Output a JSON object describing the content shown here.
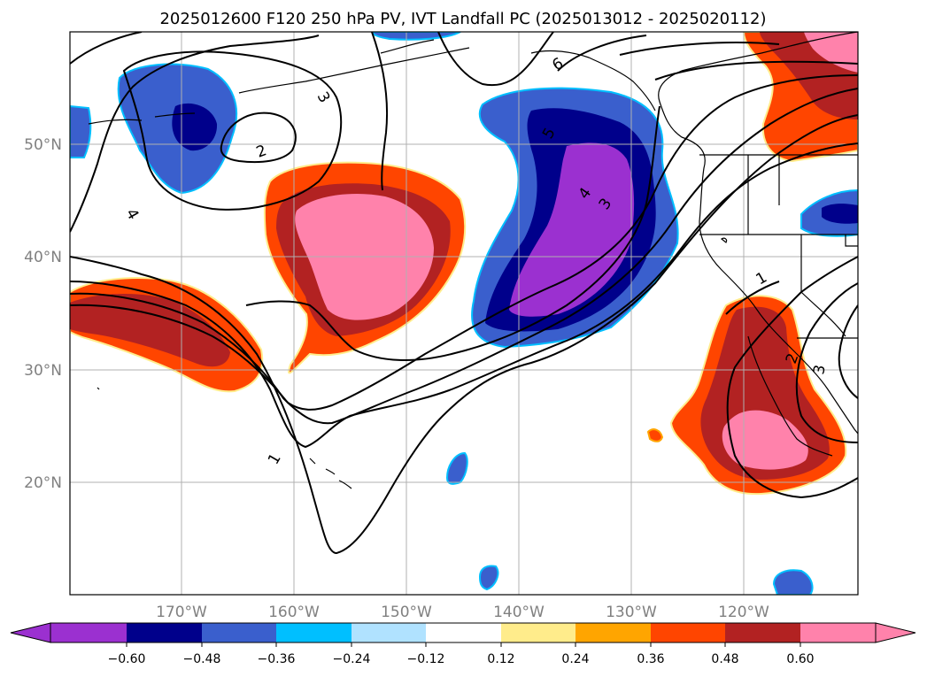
{
  "title": "2025012600 F120 250 hPa PV, IVT Landfall PC (2025013012 - 2025020112)",
  "lat_labels": [
    "50°N",
    "40°N",
    "30°N",
    "20°N"
  ],
  "lon_labels": [
    "170°W",
    "160°W",
    "150°W",
    "140°W",
    "130°W",
    "120°W"
  ],
  "colorbar": {
    "ticks": [
      "−0.60",
      "−0.48",
      "−0.36",
      "−0.24",
      "−0.12",
      "0.12",
      "0.24",
      "0.36",
      "0.48",
      "0.60"
    ],
    "colors": [
      "#9b30d0",
      "#00008b",
      "#3a5fcd",
      "#00bfff",
      "#b0e2ff",
      "#ffffff",
      "#ffec8b",
      "#ffa500",
      "#ff4500",
      "#b22222",
      "#ff82ab",
      "#ff82ab"
    ],
    "extend": "both"
  },
  "contour_labels": [
    "6",
    "3",
    "2",
    "4",
    "5",
    "4",
    "3",
    "1",
    "1",
    "2",
    "3"
  ],
  "colors": {
    "purple": "#9b30d0",
    "navy": "#00008b",
    "royal": "#3a5fcd",
    "deepsky": "#00bfff",
    "lightblue": "#b0e2ff",
    "khaki": "#ffec8b",
    "orange": "#ffa500",
    "orangered": "#ff4500",
    "firebrick": "#b22222",
    "pink": "#ff82ab"
  }
}
